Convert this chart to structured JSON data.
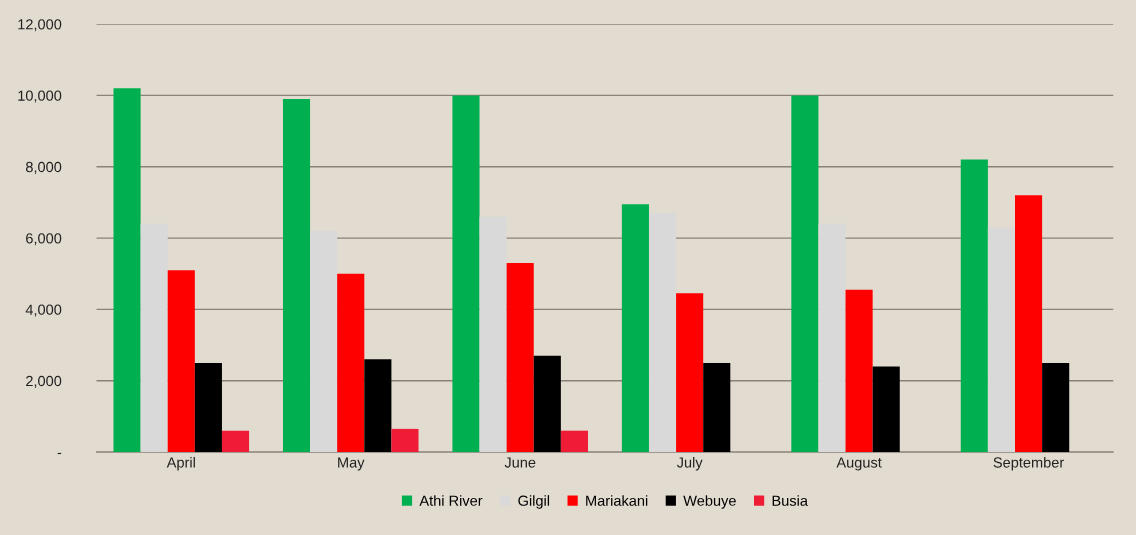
{
  "chart_data": {
    "type": "bar",
    "categories": [
      "April",
      "May",
      "June",
      "July",
      "August",
      "September"
    ],
    "series": [
      {
        "name": "Athi River",
        "color": "#00b050",
        "values": [
          10200,
          9900,
          10000,
          6950,
          10000,
          8200
        ]
      },
      {
        "name": "Gilgil",
        "color": "#d9d9d9",
        "values": [
          6400,
          6200,
          6600,
          6700,
          6400,
          6300
        ]
      },
      {
        "name": "Mariakani",
        "color": "#ff0000",
        "values": [
          5100,
          5000,
          5300,
          4450,
          4550,
          7200
        ]
      },
      {
        "name": "Webuye",
        "color": "#000000",
        "values": [
          2500,
          2600,
          2700,
          2500,
          2400,
          2500
        ]
      },
      {
        "name": "Busia",
        "color": "#ee1c35",
        "values": [
          600,
          650,
          600,
          null,
          null,
          null
        ]
      }
    ],
    "ylim": [
      0,
      12000
    ],
    "yticks": [
      {
        "value": 0,
        "label": "-"
      },
      {
        "value": 2000,
        "label": "2,000"
      },
      {
        "value": 4000,
        "label": "4,000"
      },
      {
        "value": 6000,
        "label": "6,000"
      },
      {
        "value": 8000,
        "label": "8,000"
      },
      {
        "value": 10000,
        "label": "10,000"
      },
      {
        "value": 12000,
        "label": "12,000"
      }
    ],
    "grid": "y",
    "legend": "bottom"
  }
}
